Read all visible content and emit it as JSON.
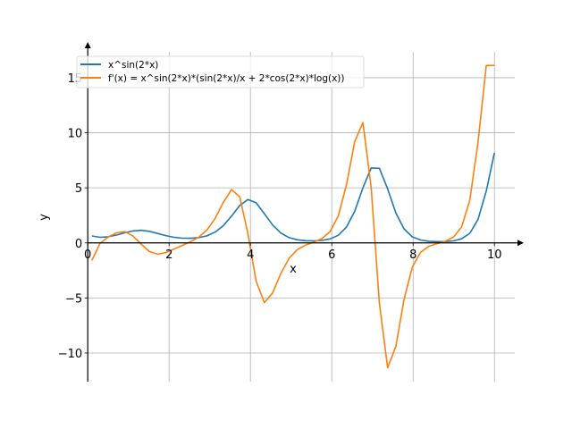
{
  "chart_data": {
    "type": "line",
    "title": "",
    "xlabel": "x",
    "ylabel": "y",
    "xlim": [
      -0.4,
      10.5
    ],
    "ylim": [
      -12.6,
      17.35
    ],
    "grid": true,
    "legend_position": "top-left",
    "xticks": [
      0,
      2,
      4,
      6,
      8,
      10
    ],
    "yticks": [
      -10,
      -5,
      0,
      5,
      10,
      15
    ],
    "xtick_labels": [
      "0",
      "2",
      "4",
      "6",
      "8",
      "10"
    ],
    "ytick_labels": [
      "−10",
      "−5",
      "0",
      "5",
      "10",
      "15"
    ],
    "x": [
      0.1,
      0.302,
      0.504,
      0.706,
      0.908,
      1.11,
      1.312,
      1.514,
      1.716,
      1.918,
      2.12,
      2.322,
      2.524,
      2.727,
      2.929,
      3.131,
      3.333,
      3.535,
      3.737,
      3.939,
      4.141,
      4.343,
      4.545,
      4.747,
      4.949,
      5.151,
      5.353,
      5.555,
      5.757,
      5.959,
      6.161,
      6.363,
      6.565,
      6.767,
      6.969,
      7.171,
      7.373,
      7.576,
      7.778,
      7.98,
      8.182,
      8.384,
      8.586,
      8.788,
      8.99,
      9.192,
      9.394,
      9.596,
      9.798,
      10.0
    ],
    "series": [
      {
        "name": "x^sin(2*x)",
        "color": "#1f77b4",
        "values": [
          0.632,
          0.507,
          0.56,
          0.709,
          0.911,
          1.087,
          1.144,
          1.048,
          0.855,
          0.659,
          0.512,
          0.431,
          0.417,
          0.478,
          0.642,
          0.975,
          1.567,
          2.438,
          3.398,
          3.938,
          3.644,
          2.651,
          1.626,
          0.894,
          0.477,
          0.278,
          0.198,
          0.183,
          0.227,
          0.364,
          0.698,
          1.445,
          2.874,
          5.003,
          6.808,
          6.773,
          4.914,
          2.725,
          1.262,
          0.55,
          0.261,
          0.151,
          0.118,
          0.125,
          0.187,
          0.371,
          0.872,
          2.138,
          4.711,
          8.18
        ]
      },
      {
        "name": "f'(x) = x^sin(2*x)*(sin(2*x)/x + 2*cos(2*x)*log(x))",
        "color": "#ff7f0e",
        "values": [
          -1.6,
          -0.045,
          0.53,
          0.913,
          1.016,
          0.642,
          -0.11,
          -0.786,
          -1.028,
          -0.879,
          -0.564,
          -0.233,
          0.099,
          0.519,
          1.167,
          2.218,
          3.678,
          4.846,
          4.176,
          0.821,
          -3.486,
          -5.419,
          -4.549,
          -2.791,
          -1.397,
          -0.611,
          -0.206,
          0.062,
          0.39,
          1.037,
          2.465,
          5.286,
          9.2,
          10.93,
          5.01,
          -5.49,
          -11.33,
          -9.41,
          -5.126,
          -2.209,
          -0.861,
          -0.308,
          -0.068,
          0.146,
          0.514,
          1.453,
          3.893,
          9.18,
          16.11,
          16.12
        ]
      }
    ]
  }
}
